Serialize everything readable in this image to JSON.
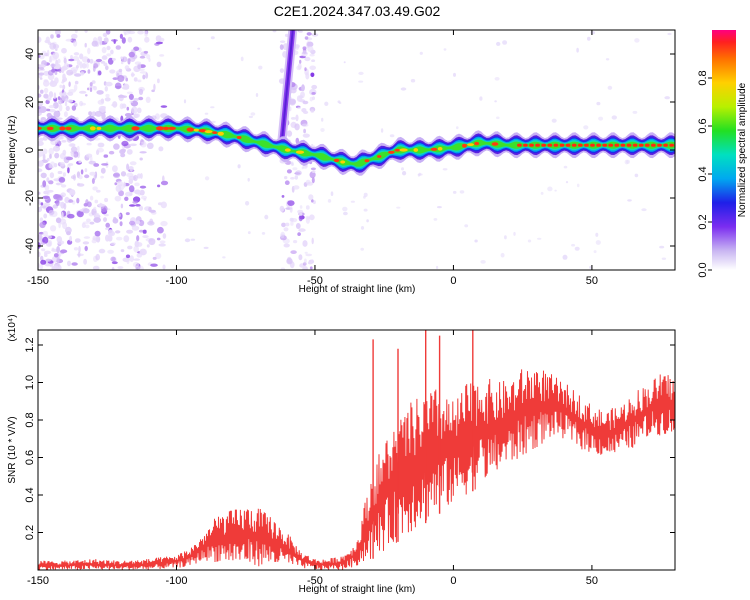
{
  "title": "C2E1.2024.347.03.49.G02",
  "chart_data": [
    {
      "type": "heatmap",
      "xlabel": "Height of straight line (km)",
      "ylabel": "Frequency (Hz)",
      "xlim": [
        -150,
        80
      ],
      "ylim": [
        -50,
        50
      ],
      "x_ticks": [
        -150,
        -100,
        -50,
        0,
        50
      ],
      "y_ticks": [
        -40,
        -20,
        0,
        20,
        40
      ],
      "colorbar": {
        "label": "Normalized spectral amplitude",
        "range": [
          0,
          1
        ],
        "ticks": [
          "0.0",
          "0.2",
          "0.4",
          "0.6",
          "0.8"
        ],
        "tick_values": [
          0.0,
          0.2,
          0.4,
          0.6,
          0.8
        ]
      },
      "ridge_trace": {
        "x": [
          -150,
          -140,
          -130,
          -120,
          -110,
          -100,
          -90,
          -80,
          -70,
          -60,
          -50,
          -40,
          -35,
          -30,
          -20,
          -10,
          0,
          10,
          20,
          30,
          40,
          50,
          60,
          70,
          80
        ],
        "freq": [
          9,
          9,
          9,
          9,
          9,
          9,
          8,
          6,
          3,
          0,
          -2,
          -5,
          -6,
          -4,
          0,
          0,
          1,
          3,
          2,
          2,
          2,
          2,
          2,
          2,
          2
        ]
      },
      "streak": {
        "x": [
          -62,
          -58
        ],
        "freq": [
          3,
          50
        ]
      },
      "grid": false
    },
    {
      "type": "line",
      "xlabel": "Height of straight line (km)",
      "ylabel": "SNR (10 * V/V)",
      "scale_label": "(x10⁴)",
      "xlim": [
        -150,
        80
      ],
      "ylim": [
        0,
        1.28
      ],
      "x_ticks": [
        -150,
        -100,
        -50,
        0,
        50
      ],
      "y_ticks": [
        0.2,
        0.4,
        0.6,
        0.8,
        1.0,
        1.2
      ],
      "y_tick_labels": [
        "0.2",
        "0.4",
        "0.6",
        "0.8",
        "1.0",
        "1.2"
      ],
      "series_color": "#ef3b39",
      "envelope": {
        "x": [
          -150,
          -140,
          -130,
          -120,
          -110,
          -100,
          -95,
          -90,
          -85,
          -80,
          -75,
          -70,
          -65,
          -60,
          -55,
          -50,
          -45,
          -40,
          -35,
          -30,
          -25,
          -20,
          -15,
          -10,
          -5,
          0,
          5,
          10,
          15,
          20,
          25,
          30,
          35,
          40,
          45,
          50,
          55,
          60,
          65,
          70,
          75,
          80
        ],
        "low": [
          0.0,
          0.0,
          0.0,
          0.0,
          0.0,
          0.01,
          0.02,
          0.05,
          0.04,
          0.03,
          0.02,
          0.02,
          0.02,
          0.02,
          0.01,
          0.0,
          0.0,
          0.0,
          0.02,
          0.05,
          0.1,
          0.15,
          0.2,
          0.25,
          0.3,
          0.35,
          0.4,
          0.45,
          0.5,
          0.55,
          0.6,
          0.65,
          0.7,
          0.7,
          0.65,
          0.62,
          0.6,
          0.62,
          0.65,
          0.7,
          0.72,
          0.72
        ],
        "high": [
          0.05,
          0.05,
          0.06,
          0.05,
          0.06,
          0.08,
          0.12,
          0.2,
          0.3,
          0.32,
          0.35,
          0.33,
          0.28,
          0.2,
          0.1,
          0.06,
          0.06,
          0.08,
          0.15,
          0.5,
          0.7,
          0.8,
          0.9,
          0.95,
          0.98,
          0.9,
          1.0,
          1.05,
          1.0,
          1.02,
          1.08,
          1.1,
          1.05,
          1.0,
          0.95,
          0.88,
          0.85,
          0.88,
          0.95,
          1.0,
          1.05,
          1.05
        ]
      },
      "spikes": [
        {
          "x": -29,
          "value": 1.23
        },
        {
          "x": -20,
          "value": 1.18
        },
        {
          "x": -10,
          "value": 1.28
        },
        {
          "x": -5,
          "value": 1.25
        },
        {
          "x": 7,
          "value": 1.28
        }
      ],
      "grid": false
    }
  ]
}
